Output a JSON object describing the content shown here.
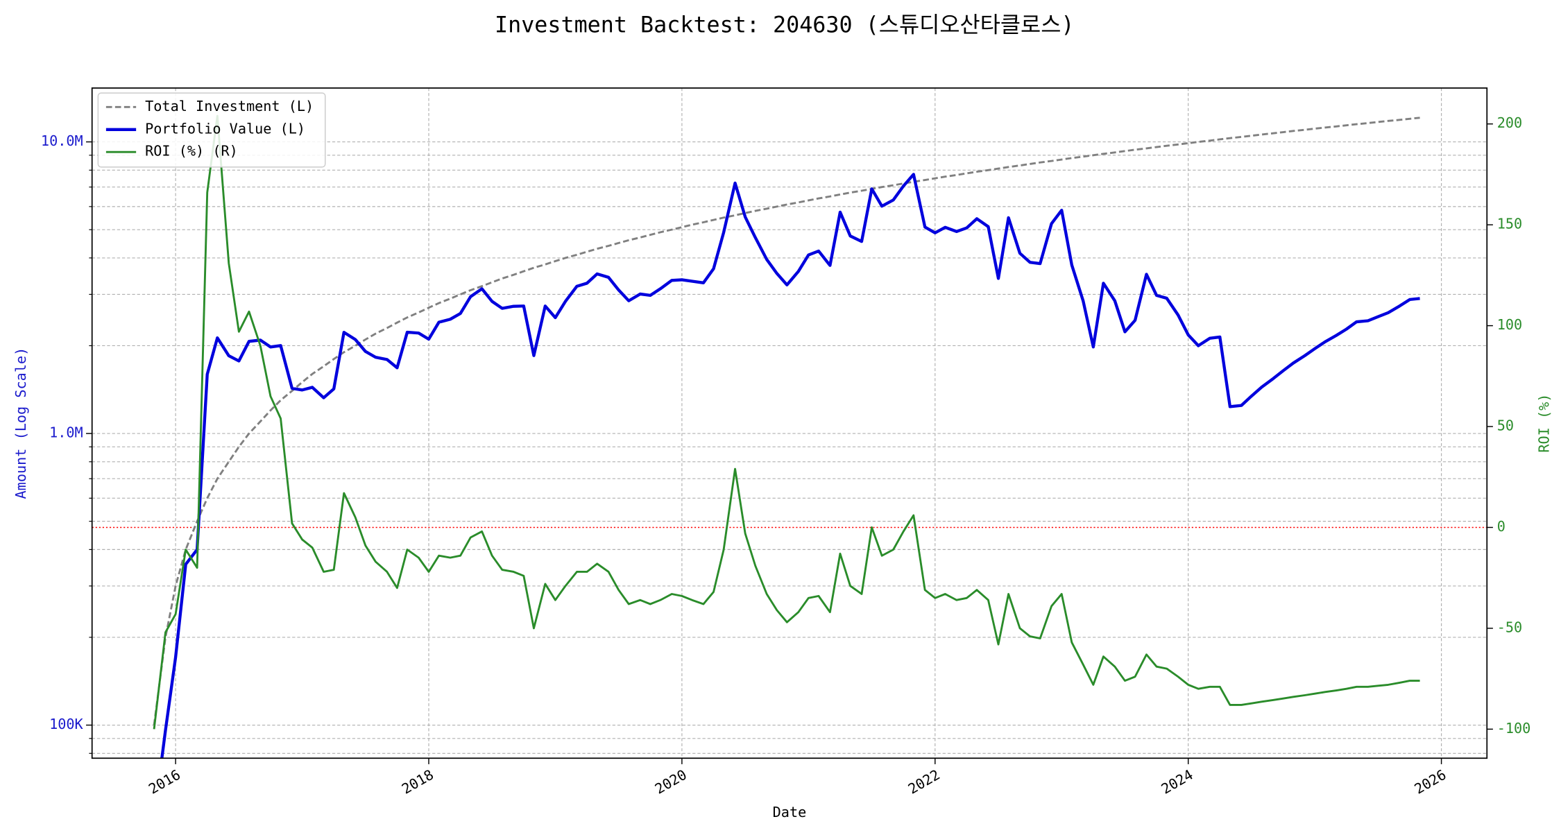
{
  "chart_data": {
    "type": "line",
    "title": "Investment Backtest: 204630 (스튜디오산타클로스)",
    "xlabel": "Date",
    "ylabel": "Amount (Log Scale)",
    "y2label": "ROI (%)",
    "xlim": [
      2015.34,
      2026.36
    ],
    "xticks": [
      2016,
      2018,
      2020,
      2022,
      2024,
      2026
    ],
    "ylim": [
      77000,
      15300000
    ],
    "yscale": "log",
    "yticks": [
      {
        "value": 100000,
        "label": "100K"
      },
      {
        "value": 1000000,
        "label": "1.0M"
      },
      {
        "value": 10000000,
        "label": "10.0M"
      }
    ],
    "yminorticks": [
      80000,
      90000,
      200000,
      300000,
      400000,
      500000,
      600000,
      700000,
      800000,
      900000,
      2000000,
      3000000,
      4000000,
      5000000,
      6000000,
      7000000,
      8000000,
      9000000
    ],
    "y2lim": [
      -114.4,
      217.8
    ],
    "y2ticks": [
      -100,
      -50,
      0,
      50,
      100,
      150,
      200
    ],
    "grid": true,
    "legend": "upper left",
    "reference_line": {
      "axis": "y2",
      "value": 0,
      "color": "red"
    },
    "x": [
      2015.83,
      2015.92,
      2016.0,
      2016.08,
      2016.17,
      2016.25,
      2016.33,
      2016.42,
      2016.5,
      2016.58,
      2016.67,
      2016.75,
      2016.83,
      2016.92,
      2017.0,
      2017.08,
      2017.17,
      2017.25,
      2017.33,
      2017.42,
      2017.5,
      2017.58,
      2017.67,
      2017.75,
      2017.83,
      2017.92,
      2018.0,
      2018.08,
      2018.17,
      2018.25,
      2018.33,
      2018.42,
      2018.5,
      2018.58,
      2018.67,
      2018.75,
      2018.83,
      2018.92,
      2019.0,
      2019.08,
      2019.17,
      2019.25,
      2019.33,
      2019.42,
      2019.5,
      2019.58,
      2019.67,
      2019.75,
      2019.83,
      2019.92,
      2020.0,
      2020.08,
      2020.17,
      2020.25,
      2020.33,
      2020.42,
      2020.5,
      2020.58,
      2020.67,
      2020.75,
      2020.83,
      2020.92,
      2021.0,
      2021.08,
      2021.17,
      2021.25,
      2021.33,
      2021.42,
      2021.5,
      2021.58,
      2021.67,
      2021.75,
      2021.83,
      2021.92,
      2022.0,
      2022.08,
      2022.17,
      2022.25,
      2022.33,
      2022.42,
      2022.5,
      2022.58,
      2022.67,
      2022.75,
      2022.83,
      2022.92,
      2023.0,
      2023.08,
      2023.17,
      2023.25,
      2023.33,
      2023.42,
      2023.5,
      2023.58,
      2023.67,
      2023.75,
      2023.83,
      2023.92,
      2024.0,
      2024.08,
      2024.17,
      2024.25,
      2024.33,
      2024.42,
      2024.5,
      2024.58,
      2024.67,
      2024.75,
      2024.83,
      2024.92,
      2025.0,
      2025.08,
      2025.17,
      2025.25,
      2025.33,
      2025.42,
      2025.5,
      2025.58,
      2025.67,
      2025.75,
      2025.83
    ],
    "series": [
      {
        "name": "Total Investment (L)",
        "color": "#808080",
        "linestyle": "dashed",
        "linewidth": 2,
        "axis": "y",
        "values": [
          100000,
          200000,
          300000,
          400000,
          500000,
          600000,
          700000,
          800000,
          900000,
          1000000,
          1100000,
          1200000,
          1300000,
          1400000,
          1500000,
          1600000,
          1700000,
          1800000,
          1900000,
          2000000,
          2100000,
          2200000,
          2300000,
          2400000,
          2500000,
          2600000,
          2700000,
          2800000,
          2900000,
          3000000,
          3100000,
          3200000,
          3300000,
          3400000,
          3500000,
          3600000,
          3700000,
          3800000,
          3900000,
          4000000,
          4100000,
          4200000,
          4300000,
          4400000,
          4500000,
          4600000,
          4700000,
          4800000,
          4900000,
          5000000,
          5100000,
          5200000,
          5300000,
          5400000,
          5500000,
          5600000,
          5700000,
          5800000,
          5900000,
          6000000,
          6100000,
          6200000,
          6300000,
          6400000,
          6500000,
          6600000,
          6700000,
          6800000,
          6900000,
          7000000,
          7100000,
          7200000,
          7300000,
          7400000,
          7500000,
          7600000,
          7700000,
          7800000,
          7900000,
          8000000,
          8100000,
          8200000,
          8300000,
          8400000,
          8500000,
          8600000,
          8700000,
          8800000,
          8900000,
          9000000,
          9100000,
          9200000,
          9300000,
          9400000,
          9500000,
          9600000,
          9700000,
          9800000,
          9900000,
          10000000,
          10100000,
          10200000,
          10300000,
          10400000,
          10500000,
          10600000,
          10700000,
          10800000,
          10900000,
          11000000,
          11100000,
          11200000,
          11300000,
          11400000,
          11500000,
          11600000,
          11700000,
          11800000,
          11900000,
          12000000,
          12100000
        ]
      },
      {
        "name": "Portfolio Value (L)",
        "color": "#0000dd",
        "linestyle": "solid",
        "linewidth": 3,
        "axis": "y",
        "values": [
          0,
          96000,
          171000,
          356000,
          400000,
          1596000,
          2128000,
          1848000,
          1773000,
          2070000,
          2090000,
          1980000,
          2002000,
          1428000,
          1410000,
          1440000,
          1326000,
          1422000,
          2223000,
          2100000,
          1911000,
          1826000,
          1794000,
          1680000,
          2225000,
          2210000,
          2106000,
          2408000,
          2465000,
          2580000,
          2945000,
          3136000,
          2838000,
          2686000,
          2730000,
          2736000,
          1850000,
          2736000,
          2496000,
          2840000,
          3198000,
          3276000,
          3526000,
          3432000,
          3105000,
          2852000,
          3008000,
          2976000,
          3136000,
          3350000,
          3366000,
          3328000,
          3286000,
          3672000,
          4895000,
          7224000,
          5529000,
          4698000,
          3953000,
          3540000,
          3233000,
          3596000,
          4095000,
          4224000,
          3770000,
          5742000,
          4757000,
          4556000,
          6900000,
          6020000,
          6319000,
          7056000,
          7738000,
          5106000,
          4875000,
          5092000,
          4928000,
          5070000,
          5451000,
          5120000,
          3402000,
          5494000,
          4150000,
          3864000,
          3825000,
          5246000,
          5829000,
          3784000,
          2848000,
          1980000,
          3276000,
          2852000,
          2232000,
          2444000,
          3515000,
          2976000,
          2910000,
          2548000,
          2178000,
          2000000,
          2121000,
          2142000,
          1236000,
          1248000,
          1344000,
          1441600,
          1540800,
          1641600,
          1744000,
          1848000,
          1953600,
          2060800,
          2169600,
          2280000,
          2415000,
          2436000,
          2515500,
          2596000,
          2737000,
          2880000,
          2904000
        ]
      },
      {
        "name": "ROI (%) (R)",
        "color": "#2a8c2a",
        "linestyle": "solid",
        "linewidth": 2,
        "axis": "y2",
        "values": [
          -100,
          -52,
          -43,
          -11,
          -20,
          166,
          204,
          131,
          97,
          107,
          90,
          65,
          54,
          2,
          -6,
          -10,
          -22,
          -21,
          17,
          5,
          -9,
          -17,
          -22,
          -30,
          -11,
          -15,
          -22,
          -14,
          -15,
          -14,
          -5,
          -2,
          -14,
          -21,
          -22,
          -24,
          -50,
          -28,
          -36,
          -29,
          -22,
          -22,
          -18,
          -22,
          -31,
          -38,
          -36,
          -38,
          -36,
          -33,
          -34,
          -36,
          -38,
          -32,
          -11,
          29,
          -3,
          -19,
          -33,
          -41,
          -47,
          -42,
          -35,
          -34,
          -42,
          -13,
          -29,
          -33,
          0,
          -14,
          -11,
          -2,
          6,
          -31,
          -35,
          -33,
          -36,
          -35,
          -31,
          -36,
          -58,
          -33,
          -50,
          -54,
          -55,
          -39,
          -33,
          -57,
          -68,
          -78,
          -64,
          -69,
          -76,
          -74,
          -63,
          -69,
          -70,
          -74,
          -78,
          -80,
          -79,
          -79,
          -88,
          -88,
          -87.2,
          -86.4,
          -85.6,
          -84.8,
          -84,
          -83.2,
          -82.4,
          -81.6,
          -80.8,
          -80,
          -79,
          -79,
          -78.5,
          -78,
          -77,
          -76,
          -76
        ]
      }
    ]
  }
}
